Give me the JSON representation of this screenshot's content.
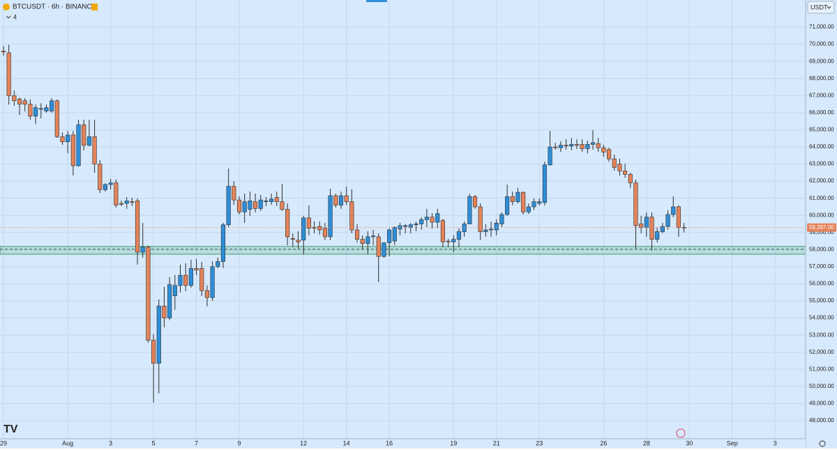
{
  "chart_data": {
    "type": "candlestick",
    "title": "BTCUSDT · 6h · BINANCE",
    "indicator_count": "4",
    "currency": "USDT",
    "up_color": "#2d8ed8",
    "down_color": "#e5835a",
    "grid": true,
    "xlim": [
      -0.65,
      149.7
    ],
    "xticks": [
      {
        "value": 0,
        "label": "29"
      },
      {
        "value": 12,
        "label": "Aug"
      },
      {
        "value": 20,
        "label": "3"
      },
      {
        "value": 28,
        "label": "5"
      },
      {
        "value": 36,
        "label": "7"
      },
      {
        "value": 44,
        "label": "9"
      },
      {
        "value": 56,
        "label": "12"
      },
      {
        "value": 64,
        "label": "14"
      },
      {
        "value": 72,
        "label": "16"
      },
      {
        "value": 84,
        "label": "19"
      },
      {
        "value": 92,
        "label": "21"
      },
      {
        "value": 100,
        "label": "23"
      },
      {
        "value": 112,
        "label": "26"
      },
      {
        "value": 120,
        "label": "28"
      },
      {
        "value": 128,
        "label": "30"
      },
      {
        "value": 136,
        "label": "Sep"
      },
      {
        "value": 144,
        "label": "3"
      }
    ],
    "ylim": [
      46940,
      72590
    ],
    "yticks": [
      {
        "value": 48000,
        "label": "48,000.00"
      },
      {
        "value": 49000,
        "label": "49,000.00"
      },
      {
        "value": 50000,
        "label": "50,000.00"
      },
      {
        "value": 51000,
        "label": "51,000.00"
      },
      {
        "value": 52000,
        "label": "52,000.00"
      },
      {
        "value": 53000,
        "label": "53,000.00"
      },
      {
        "value": 54000,
        "label": "54,000.00"
      },
      {
        "value": 55000,
        "label": "55,000.00"
      },
      {
        "value": 56000,
        "label": "56,000.00"
      },
      {
        "value": 57000,
        "label": "57,000.00"
      },
      {
        "value": 58000,
        "label": "58,000.00"
      },
      {
        "value": 59000,
        "label": "59,000.00"
      },
      {
        "value": 60000,
        "label": "60,000.00"
      },
      {
        "value": 61000,
        "label": "61,000.00"
      },
      {
        "value": 62000,
        "label": "62,000.00"
      },
      {
        "value": 63000,
        "label": "63,000.00"
      },
      {
        "value": 64000,
        "label": "64,000.00"
      },
      {
        "value": 65000,
        "label": "65,000.00"
      },
      {
        "value": 66000,
        "label": "66,000.00"
      },
      {
        "value": 67000,
        "label": "67,000.00"
      },
      {
        "value": 68000,
        "label": "68,000.00"
      },
      {
        "value": 69000,
        "label": "69,000.00"
      },
      {
        "value": 70000,
        "label": "70,000.00"
      },
      {
        "value": 71000,
        "label": "71,000.00"
      }
    ],
    "zone": {
      "low": 57730,
      "high": 58180,
      "line": 58020,
      "color": "#3a9a6a"
    },
    "last_price": {
      "value": 59287,
      "label": "59,287.00"
    },
    "open": [
      69600,
      69500,
      67000,
      66800,
      66700,
      66500,
      65800,
      66200,
      66100,
      66100,
      66700,
      64600,
      64300,
      64700,
      62900,
      65300,
      64100,
      64600,
      63000,
      61500,
      61800,
      61900,
      60700,
      60700,
      60800,
      60850,
      57850,
      58150,
      52700,
      51350,
      54700,
      54000,
      55300,
      55900,
      56500,
      55900,
      56900,
      56900,
      55600,
      55200,
      57000,
      57300,
      59450,
      61700,
      60900,
      60200,
      60350,
      60800,
      60400,
      60800,
      60800,
      61050,
      60800,
      60350,
      58650,
      58550,
      58550,
      59850,
      59300,
      59350,
      59250,
      58750,
      61150,
      60600,
      61150,
      60800,
      59150,
      58600,
      58350,
      58750,
      58750,
      57600,
      58400,
      58500,
      59200,
      59350,
      59300,
      59450,
      59500,
      59750,
      59900,
      59600,
      59700,
      58500,
      58450,
      58600,
      59050,
      59500,
      61100,
      60500,
      59050,
      59150,
      59150,
      59500,
      60050,
      61100,
      60800,
      61350,
      60200,
      60500,
      60700,
      60750,
      62950,
      64000,
      63950,
      64100,
      64050,
      64150,
      64150,
      63900,
      64150,
      64200,
      63950,
      63850,
      63300,
      63000,
      62600,
      62400,
      61900,
      59500,
      59300,
      59900,
      58600,
      59050,
      59350,
      60050,
      60500,
      59300
    ],
    "high": [
      69900,
      69980,
      67300,
      66890,
      66850,
      66770,
      66480,
      66560,
      66480,
      66850,
      66770,
      64850,
      64940,
      64940,
      65590,
      65590,
      65590,
      65590,
      63230,
      61880,
      62130,
      62090,
      60870,
      61070,
      61030,
      60990,
      59560,
      58230,
      53050,
      55090,
      55820,
      56390,
      56510,
      57120,
      57200,
      57410,
      57450,
      57280,
      55900,
      57320,
      57530,
      59560,
      62740,
      62000,
      61110,
      61270,
      61390,
      61270,
      61190,
      61070,
      61270,
      61390,
      61840,
      60700,
      58950,
      59070,
      59970,
      60580,
      59640,
      59640,
      59560,
      61560,
      61270,
      61390,
      61680,
      61520,
      59480,
      58830,
      59070,
      59160,
      58950,
      58420,
      59240,
      59360,
      59560,
      59480,
      59560,
      59640,
      59890,
      60380,
      60130,
      60380,
      59800,
      58630,
      58830,
      59240,
      59640,
      61270,
      61190,
      60700,
      59480,
      59640,
      59770,
      60170,
      61800,
      61390,
      61600,
      61390,
      60700,
      60990,
      60990,
      63140,
      64940,
      64240,
      64330,
      64450,
      64530,
      64450,
      64450,
      64370,
      64980,
      64530,
      64120,
      63960,
      63550,
      63310,
      63020,
      62490,
      62090,
      59970,
      60170,
      60170,
      59320,
      59560,
      60300,
      61110,
      60580,
      59560
    ],
    "low": [
      69330,
      66480,
      66400,
      65870,
      66080,
      65590,
      65340,
      65670,
      66000,
      66000,
      64530,
      64120,
      63630,
      62330,
      62850,
      63800,
      64040,
      62490,
      61310,
      61390,
      61520,
      60460,
      60540,
      60380,
      60540,
      57120,
      57530,
      52560,
      49060,
      49590,
      53460,
      53870,
      54480,
      55490,
      55570,
      55780,
      56510,
      55290,
      54680,
      55000,
      56920,
      56920,
      59320,
      60620,
      60050,
      59560,
      59970,
      60170,
      60260,
      60540,
      60620,
      60540,
      60260,
      58260,
      58140,
      58060,
      57730,
      58830,
      58950,
      58870,
      58550,
      58550,
      60460,
      60380,
      60620,
      58950,
      58420,
      58020,
      57730,
      58260,
      56100,
      57530,
      57610,
      58260,
      58830,
      58950,
      58950,
      59070,
      59160,
      59320,
      59240,
      59240,
      58140,
      58140,
      57850,
      58140,
      58750,
      59480,
      60380,
      58550,
      58750,
      58750,
      58830,
      59320,
      59970,
      60580,
      60700,
      60050,
      60090,
      60300,
      60580,
      60580,
      62900,
      63840,
      63710,
      63840,
      63800,
      63880,
      63710,
      63630,
      63840,
      63710,
      63430,
      63140,
      62620,
      62330,
      62210,
      61600,
      58060,
      58950,
      58750,
      57940,
      58420,
      58950,
      59160,
      59890,
      58750,
      59000
    ],
    "close": [
      69550,
      67000,
      66700,
      66500,
      66500,
      65800,
      66300,
      66250,
      66300,
      66700,
      64600,
      64300,
      64700,
      62900,
      65300,
      64100,
      64600,
      63000,
      61500,
      61800,
      61900,
      60600,
      60650,
      60850,
      60750,
      57850,
      58150,
      52700,
      51350,
      54700,
      54000,
      55950,
      55900,
      56500,
      55900,
      56900,
      56800,
      55600,
      55200,
      57000,
      57300,
      59450,
      61700,
      60900,
      60200,
      60800,
      60850,
      60400,
      60900,
      60850,
      60950,
      60800,
      60350,
      58750,
      58600,
      58450,
      59850,
      59250,
      59250,
      59150,
      58750,
      61150,
      60600,
      61150,
      60800,
      59150,
      58600,
      58350,
      58750,
      58800,
      57600,
      58400,
      59150,
      59300,
      59400,
      59400,
      59450,
      59500,
      59750,
      59900,
      59600,
      60100,
      58450,
      58450,
      58600,
      59050,
      59500,
      61100,
      60500,
      59050,
      59150,
      59200,
      59550,
      60050,
      61100,
      60800,
      61350,
      60200,
      60500,
      60800,
      60800,
      62950,
      64000,
      63950,
      64100,
      64050,
      64150,
      64100,
      63900,
      64150,
      64250,
      63950,
      63700,
      63300,
      62800,
      62600,
      62400,
      61900,
      59400,
      59300,
      59900,
      58600,
      59050,
      59350,
      60050,
      60500,
      59300,
      59287
    ]
  }
}
